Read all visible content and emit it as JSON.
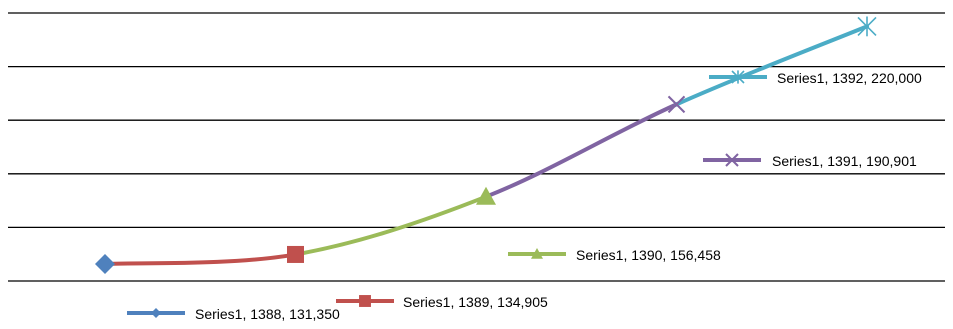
{
  "chart_data": {
    "type": "line",
    "title": "",
    "xlabel": "",
    "ylabel": "",
    "grid": true,
    "legend": "none",
    "smooth": true,
    "ylim": [
      125000,
      225000
    ],
    "x": [
      1388,
      1389,
      1390,
      1391,
      1392
    ],
    "series": [
      {
        "name": "Series1",
        "values": [
          131350,
          134905,
          156458,
          190901,
          220000
        ]
      }
    ],
    "segment_colors": [
      "#4F81BD",
      "#C0504D",
      "#9BBB59",
      "#8064A2",
      "#4BACC6"
    ],
    "marker_icons": [
      "diamond-icon",
      "square-icon",
      "triangle-icon",
      "x-icon",
      "star-icon"
    ],
    "data_labels": [
      "Series1, 1388, 131,350",
      "Series1, 1389, 134,905",
      "Series1, 1390, 156,458",
      "Series1, 1391, 190,901",
      "Series1, 1392, 220,000"
    ]
  }
}
